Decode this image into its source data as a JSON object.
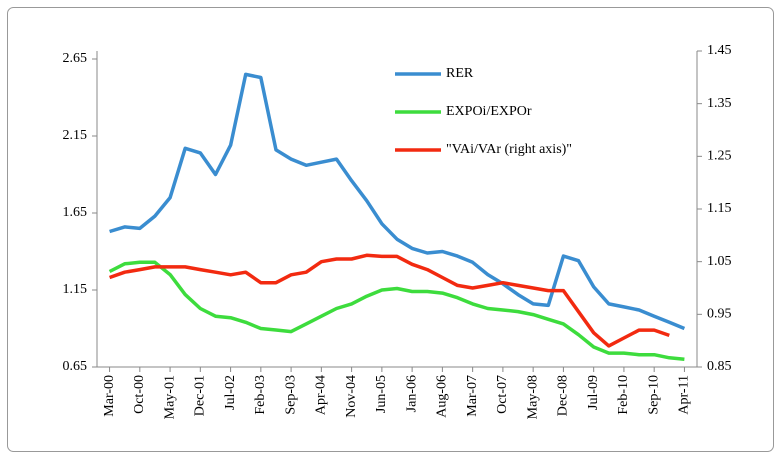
{
  "chart_data": {
    "type": "line",
    "categories": [
      "Mar-00",
      null,
      "Oct-00",
      null,
      "May-01",
      null,
      "Dec-01",
      null,
      "Jul-02",
      null,
      "Feb-03",
      null,
      "Sep-03",
      null,
      "Apr-04",
      null,
      "Nov-04",
      null,
      "Jun-05",
      null,
      "Jan-06",
      null,
      "Aug-06",
      null,
      "Mar-07",
      null,
      "Oct-07",
      null,
      "May-08",
      null,
      "Dec-08",
      null,
      "Jul-09",
      null,
      "Feb-10",
      null,
      "Sep-10",
      null,
      "Apr-11"
    ],
    "series": [
      {
        "name": "RER",
        "color": "#3a8dd0",
        "values": [
          1.53,
          1.56,
          1.55,
          1.63,
          1.75,
          2.07,
          2.04,
          1.9,
          2.09,
          2.55,
          2.53,
          2.06,
          2.0,
          1.96,
          1.98,
          2.0,
          1.86,
          1.73,
          1.58,
          1.48,
          1.42,
          1.39,
          1.4,
          1.37,
          1.33,
          1.25,
          1.19,
          1.12,
          1.06,
          1.05,
          1.37,
          1.34,
          1.17,
          1.06,
          1.04,
          1.02,
          0.98,
          0.94,
          0.9
        ]
      },
      {
        "name": "EXPOi/EXPOr",
        "color": "#3ddc3d",
        "values": [
          1.27,
          1.32,
          1.33,
          1.33,
          1.25,
          1.12,
          1.03,
          0.98,
          0.97,
          0.94,
          0.9,
          0.89,
          0.88,
          0.93,
          0.98,
          1.03,
          1.06,
          1.11,
          1.15,
          1.16,
          1.14,
          1.14,
          1.13,
          1.1,
          1.06,
          1.03,
          1.02,
          1.01,
          0.99,
          0.96,
          0.93,
          0.86,
          0.78,
          0.74,
          0.74,
          0.73,
          0.73,
          0.71,
          0.7
        ]
      },
      {
        "name": "\"VAi/VAr (right axis)\"",
        "color": "#f22a10",
        "axis": "y2",
        "values": [
          1.02,
          1.03,
          1.035,
          1.04,
          1.04,
          1.04,
          1.035,
          1.03,
          1.025,
          1.03,
          1.01,
          1.01,
          1.025,
          1.03,
          1.05,
          1.055,
          1.055,
          1.062,
          1.06,
          1.06,
          1.045,
          1.035,
          1.02,
          1.005,
          1.0,
          1.005,
          1.01,
          1.005,
          1.0,
          0.995,
          0.995,
          0.955,
          0.915,
          0.89,
          0.905,
          0.92,
          0.92,
          0.91,
          null
        ]
      }
    ],
    "ylim": [
      0.65,
      2.65
    ],
    "yticks": [
      0.65,
      1.15,
      1.65,
      2.15,
      2.65
    ],
    "y2lim": [
      0.85,
      1.45
    ],
    "y2ticks": [
      0.85,
      0.95,
      1.05,
      1.15,
      1.25,
      1.35,
      1.45
    ],
    "grid": false
  }
}
